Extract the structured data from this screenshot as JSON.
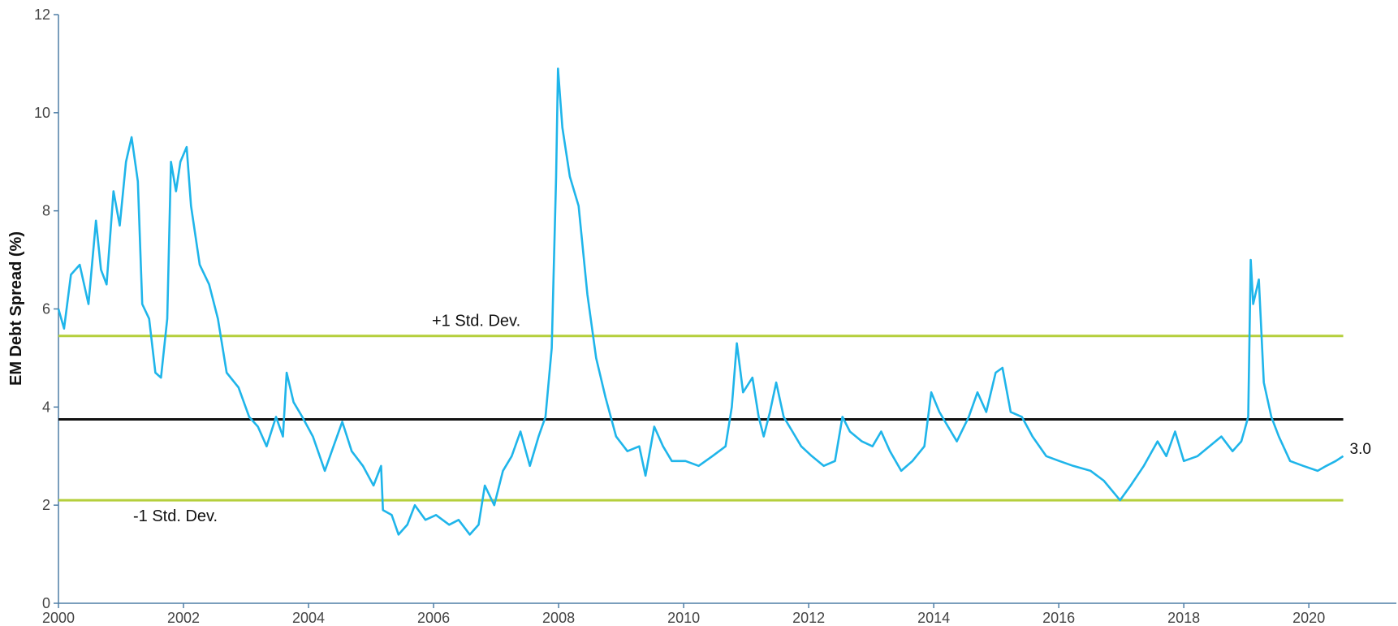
{
  "chart_data": {
    "type": "line",
    "y_label": "EM Debt Spread (%)",
    "color": "#1fb5ea",
    "axis_color": "#4f7ea6",
    "grid": false,
    "xlim": [
      2000,
      2021.4
    ],
    "xticks": [
      2000,
      2002,
      2004,
      2006,
      2008,
      2010,
      2012,
      2014,
      2016,
      2018,
      2020
    ],
    "ylim": [
      0,
      12
    ],
    "yticks": [
      0,
      2,
      4,
      6,
      8,
      10,
      12
    ],
    "reference_lines": [
      {
        "label": "+1 Std. Dev.",
        "value": 5.45,
        "color": "#b5cf3c"
      },
      {
        "value": 3.75,
        "color": "#111111"
      },
      {
        "label": "-1 Std. Dev.",
        "value": 2.1,
        "color": "#b5cf3c"
      }
    ],
    "x": [
      2000.0,
      2000.09,
      2000.2,
      2000.34,
      2000.48,
      2000.6,
      2000.68,
      2000.77,
      2000.88,
      2000.98,
      2001.08,
      2001.17,
      2001.27,
      2001.34,
      2001.45,
      2001.55,
      2001.64,
      2001.74,
      2001.8,
      2001.88,
      2001.95,
      2002.05,
      2002.12,
      2002.26,
      2002.41,
      2002.55,
      2002.69,
      2002.88,
      2003.05,
      2003.19,
      2003.33,
      2003.48,
      2003.59,
      2003.65,
      2003.76,
      2003.9,
      2004.07,
      2004.26,
      2004.4,
      2004.54,
      2004.69,
      2004.87,
      2005.04,
      2005.16,
      2005.19,
      2005.33,
      2005.44,
      2005.58,
      2005.7,
      2005.87,
      2006.04,
      2006.25,
      2006.4,
      2006.58,
      2006.72,
      2006.82,
      2006.97,
      2007.11,
      2007.25,
      2007.39,
      2007.54,
      2007.68,
      2007.79,
      2007.89,
      2007.96,
      2007.99,
      2008.06,
      2008.18,
      2008.32,
      2008.46,
      2008.6,
      2008.75,
      2008.92,
      2009.1,
      2009.29,
      2009.39,
      2009.53,
      2009.67,
      2009.81,
      2010.03,
      2010.24,
      2010.46,
      2010.67,
      2010.77,
      2010.85,
      2010.95,
      2011.1,
      2011.2,
      2011.28,
      2011.38,
      2011.48,
      2011.6,
      2011.74,
      2011.88,
      2012.05,
      2012.24,
      2012.42,
      2012.54,
      2012.66,
      2012.85,
      2013.02,
      2013.16,
      2013.3,
      2013.48,
      2013.66,
      2013.85,
      2013.96,
      2014.09,
      2014.23,
      2014.37,
      2014.56,
      2014.7,
      2014.84,
      2014.99,
      2015.1,
      2015.23,
      2015.41,
      2015.58,
      2015.8,
      2016.01,
      2016.23,
      2016.51,
      2016.72,
      2016.98,
      2017.15,
      2017.36,
      2017.58,
      2017.72,
      2017.86,
      2018.0,
      2018.22,
      2018.41,
      2018.6,
      2018.78,
      2018.92,
      2019.03,
      2019.07,
      2019.11,
      2019.2,
      2019.28,
      2019.4,
      2019.52,
      2019.7,
      2019.91,
      2020.14,
      2020.28,
      2020.43,
      2020.55
    ],
    "values": [
      6.0,
      5.6,
      6.7,
      6.9,
      6.1,
      7.8,
      6.8,
      6.5,
      8.4,
      7.7,
      9.0,
      9.5,
      8.6,
      6.1,
      5.8,
      4.7,
      4.6,
      5.8,
      9.0,
      8.4,
      9.0,
      9.3,
      8.1,
      6.9,
      6.5,
      5.8,
      4.7,
      4.4,
      3.8,
      3.6,
      3.2,
      3.8,
      3.4,
      4.7,
      4.1,
      3.8,
      3.4,
      2.7,
      3.2,
      3.7,
      3.1,
      2.8,
      2.4,
      2.8,
      1.9,
      1.8,
      1.4,
      1.6,
      2.0,
      1.7,
      1.8,
      1.6,
      1.7,
      1.4,
      1.6,
      2.4,
      2.0,
      2.7,
      3.0,
      3.5,
      2.8,
      3.4,
      3.8,
      5.2,
      8.7,
      10.9,
      9.7,
      8.7,
      8.1,
      6.3,
      5.0,
      4.2,
      3.4,
      3.1,
      3.2,
      2.6,
      3.6,
      3.2,
      2.9,
      2.9,
      2.8,
      3.0,
      3.2,
      4.0,
      5.3,
      4.3,
      4.6,
      3.8,
      3.4,
      3.9,
      4.5,
      3.8,
      3.5,
      3.2,
      3.0,
      2.8,
      2.9,
      3.8,
      3.5,
      3.3,
      3.2,
      3.5,
      3.1,
      2.7,
      2.9,
      3.2,
      4.3,
      3.9,
      3.6,
      3.3,
      3.8,
      4.3,
      3.9,
      4.7,
      4.8,
      3.9,
      3.8,
      3.4,
      3.0,
      2.9,
      2.8,
      2.7,
      2.5,
      2.1,
      2.4,
      2.8,
      3.3,
      3.0,
      3.5,
      2.9,
      3.0,
      3.2,
      3.4,
      3.1,
      3.3,
      3.8,
      7.0,
      6.1,
      6.6,
      4.5,
      3.8,
      3.4,
      2.9,
      2.8,
      2.7,
      2.8,
      2.9,
      3.0
    ],
    "value_labels": [
      null,
      null,
      null,
      null,
      null,
      null,
      null,
      null,
      null,
      null,
      null,
      null,
      null,
      null,
      null,
      null,
      null,
      null,
      null,
      null,
      null,
      null,
      null,
      null,
      null,
      null,
      null,
      null,
      null,
      null,
      null,
      null,
      null,
      null,
      null,
      null,
      null,
      null,
      null,
      null,
      null,
      null,
      null,
      null,
      null,
      null,
      null,
      null,
      null,
      null,
      null,
      null,
      null,
      null,
      null,
      null,
      null,
      null,
      null,
      null,
      null,
      null,
      null,
      null,
      null,
      null,
      null,
      null,
      null,
      null,
      null,
      null,
      null,
      null,
      null,
      null,
      null,
      null,
      null,
      null,
      null,
      null,
      null,
      null,
      null,
      null,
      null,
      null,
      null,
      null,
      null,
      null,
      null,
      null,
      null,
      null,
      null,
      null,
      null,
      null,
      null,
      null,
      null,
      null,
      null,
      null,
      null,
      null,
      null,
      null,
      null,
      null,
      null,
      null,
      null,
      null,
      null,
      null,
      null,
      null,
      null,
      null,
      null,
      null,
      null,
      null,
      null,
      null,
      null,
      null,
      null,
      null,
      null,
      null,
      null,
      null,
      null,
      null,
      null,
      null,
      null,
      null,
      null,
      null,
      null,
      null,
      null,
      "3.0"
    ]
  }
}
